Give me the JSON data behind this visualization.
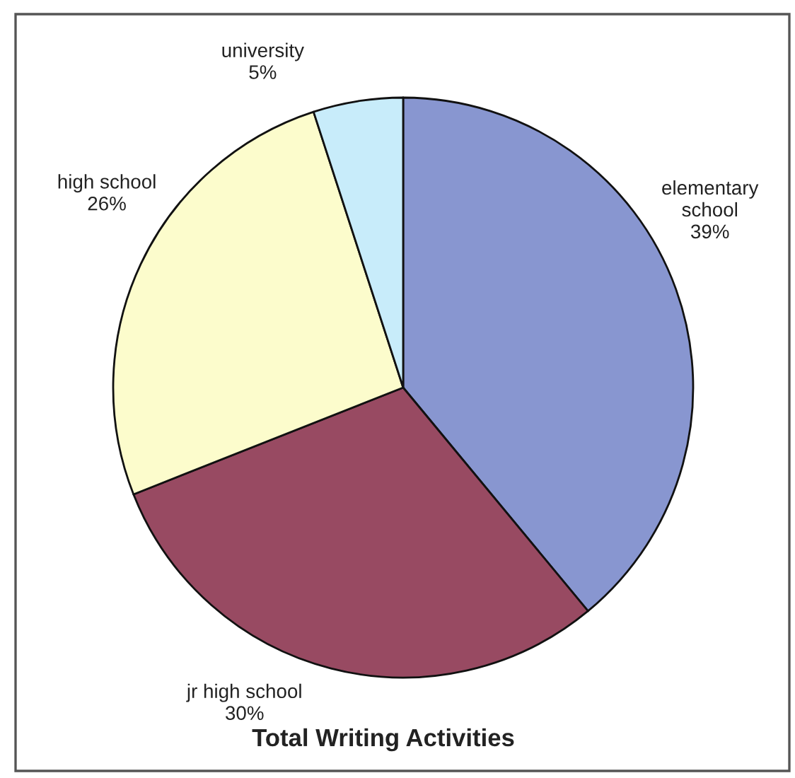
{
  "chart_data": {
    "type": "pie",
    "title": "Total Writing Activities",
    "categories": [
      "elementary\nschool",
      "jr high school",
      "high school",
      "university"
    ],
    "values": [
      39,
      30,
      26,
      5
    ],
    "colors": [
      "#8896d0",
      "#984a62",
      "#fcfccc",
      "#c8ecfa"
    ],
    "value_labels": [
      "39%",
      "30%",
      "26%",
      "5%"
    ]
  }
}
